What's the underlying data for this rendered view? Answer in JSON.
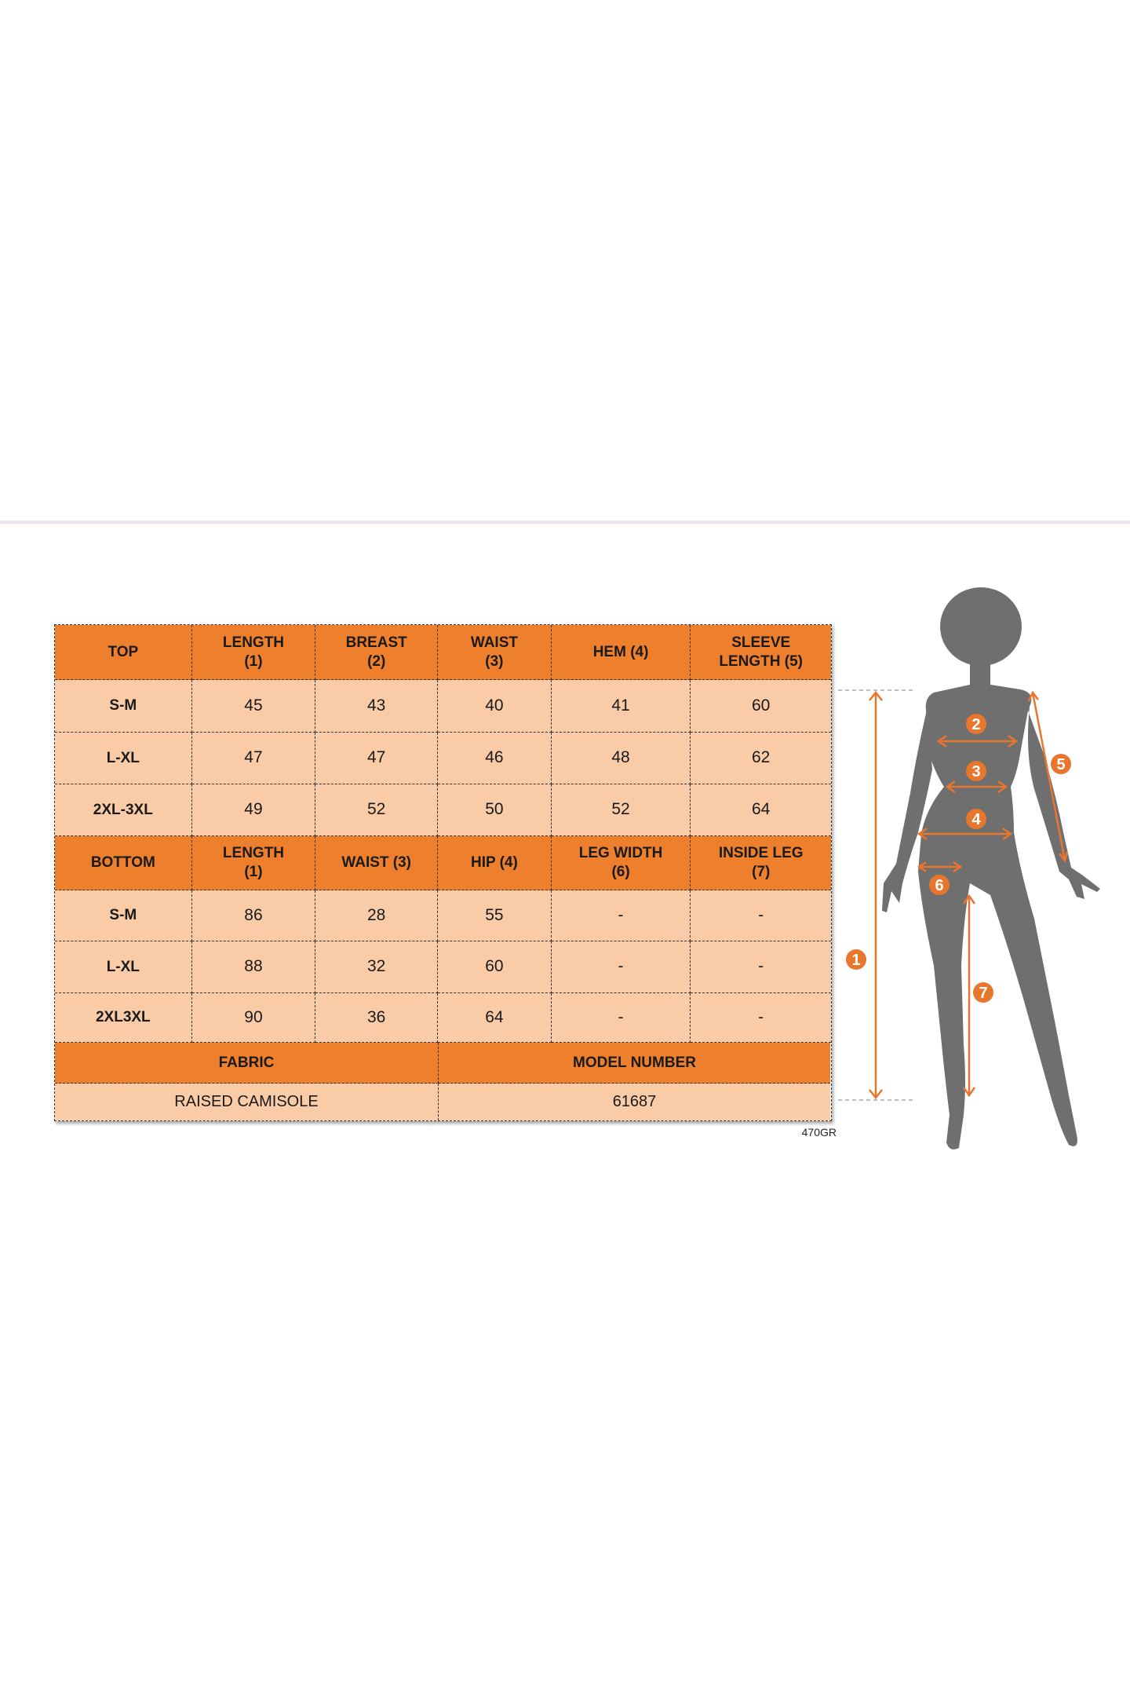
{
  "colors": {
    "header": "#ee7f2d",
    "cell": "#f9cba7",
    "silhouette": "#6f6f6f",
    "marker": "#e8762c"
  },
  "top": {
    "headers": [
      "TOP",
      "LENGTH (1)",
      "BREAST (2)",
      "WAIST (3)",
      "HEM (4)",
      "SLEEVE LENGTH (5)"
    ],
    "rows": [
      [
        "S-M",
        "45",
        "43",
        "40",
        "41",
        "60"
      ],
      [
        "L-XL",
        "47",
        "47",
        "46",
        "48",
        "62"
      ],
      [
        "2XL-3XL",
        "49",
        "52",
        "50",
        "52",
        "64"
      ]
    ]
  },
  "bottom": {
    "headers": [
      "BOTTOM",
      "LENGTH (1)",
      "WAIST (3)",
      "HIP (4)",
      "LEG WIDTH (6)",
      "INSIDE LEG (7)"
    ],
    "rows": [
      [
        "S-M",
        "86",
        "28",
        "55",
        "-",
        "-"
      ],
      [
        "L-XL",
        "88",
        "32",
        "60",
        "-",
        "-"
      ],
      [
        "2XL3XL",
        "90",
        "36",
        "64",
        "-",
        "-"
      ]
    ]
  },
  "info": {
    "headers": [
      "FABRIC",
      "MODEL NUMBER"
    ],
    "values": [
      "RAISED CAMISOLE",
      "61687"
    ]
  },
  "code": "470GR",
  "figure": {
    "markers": [
      "1",
      "2",
      "3",
      "4",
      "5",
      "6",
      "7"
    ]
  }
}
